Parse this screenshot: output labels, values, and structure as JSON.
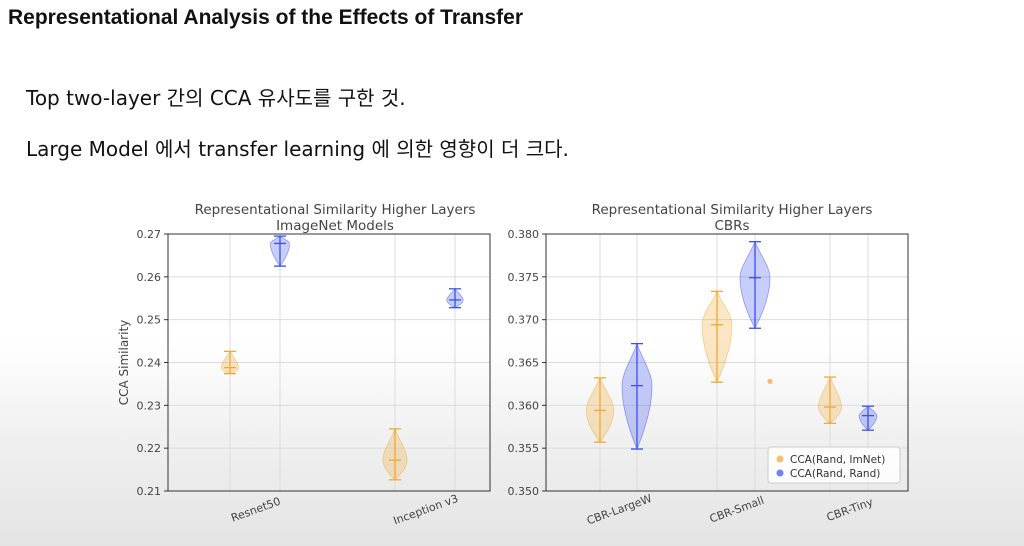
{
  "slide": {
    "title": "Representational Analysis of the Effects of Transfer",
    "bullets": [
      "Top two-layer 간의 CCA 유사도를 구한 것.",
      "Large Model 에서 transfer learning 에 의한 영향이 더 크다."
    ]
  },
  "colors": {
    "imnet": "#f0a830",
    "rand": "#3a4ff0"
  },
  "chart_data": [
    {
      "type": "violin",
      "title": "Representational Similarity Higher Layers",
      "subtitle": "ImageNet Models",
      "xlabel": "",
      "ylabel": "CCA Similarity",
      "ylim": [
        0.21,
        0.27
      ],
      "yticks": [
        0.21,
        0.22,
        0.23,
        0.24,
        0.25,
        0.26,
        0.27
      ],
      "ytick_labels": [
        "0.21",
        "0.22",
        "0.23",
        "0.24",
        "0.25",
        "0.26",
        "0.27"
      ],
      "categories": [
        "Resnet50",
        "Inception v3"
      ],
      "grid": true,
      "series": [
        {
          "name": "CCA(Rand, ImNet)",
          "color": "#f0a830",
          "violins": [
            {
              "category": "Resnet50",
              "min": 0.2374,
              "max": 0.2426,
              "median": 0.2388
            },
            {
              "category": "Inception v3",
              "min": 0.2126,
              "max": 0.2245,
              "median": 0.2172
            }
          ]
        },
        {
          "name": "CCA(Rand, Rand)",
          "color": "#3a4ff0",
          "violins": [
            {
              "category": "Resnet50",
              "min": 0.2625,
              "max": 0.2695,
              "median": 0.2678
            },
            {
              "category": "Inception v3",
              "min": 0.2528,
              "max": 0.2572,
              "median": 0.2546
            }
          ]
        }
      ]
    },
    {
      "type": "violin",
      "title": "Representational Similarity Higher Layers",
      "subtitle": "CBRs",
      "xlabel": "",
      "ylabel": "",
      "ylim": [
        0.35,
        0.38
      ],
      "yticks": [
        0.35,
        0.355,
        0.36,
        0.365,
        0.37,
        0.375,
        0.38
      ],
      "ytick_labels": [
        "0.350",
        "0.355",
        "0.360",
        "0.365",
        "0.370",
        "0.375",
        "0.380"
      ],
      "categories": [
        "CBR-LargeW",
        "CBR-Small",
        "CBR-Tiny"
      ],
      "grid": true,
      "legend": {
        "position": "lower-right",
        "entries": [
          "CCA(Rand, ImNet)",
          "CCA(Rand, Rand)"
        ]
      },
      "series": [
        {
          "name": "CCA(Rand, ImNet)",
          "color": "#f0a830",
          "violins": [
            {
              "category": "CBR-LargeW",
              "min": 0.3557,
              "max": 0.3632,
              "median": 0.3594
            },
            {
              "category": "CBR-Small",
              "min": 0.3627,
              "max": 0.3733,
              "median": 0.3694
            },
            {
              "category": "CBR-Tiny",
              "min": 0.3579,
              "max": 0.3633,
              "median": 0.3598
            }
          ]
        },
        {
          "name": "CCA(Rand, Rand)",
          "color": "#3a4ff0",
          "violins": [
            {
              "category": "CBR-LargeW",
              "min": 0.3549,
              "max": 0.3672,
              "median": 0.3623
            },
            {
              "category": "CBR-Small",
              "min": 0.369,
              "max": 0.3791,
              "median": 0.3749
            },
            {
              "category": "CBR-Tiny",
              "min": 0.3571,
              "max": 0.3599,
              "median": 0.3588
            }
          ]
        }
      ],
      "outliers": [
        {
          "series": "CCA(Rand, ImNet)",
          "value": 0.3628
        }
      ]
    }
  ]
}
